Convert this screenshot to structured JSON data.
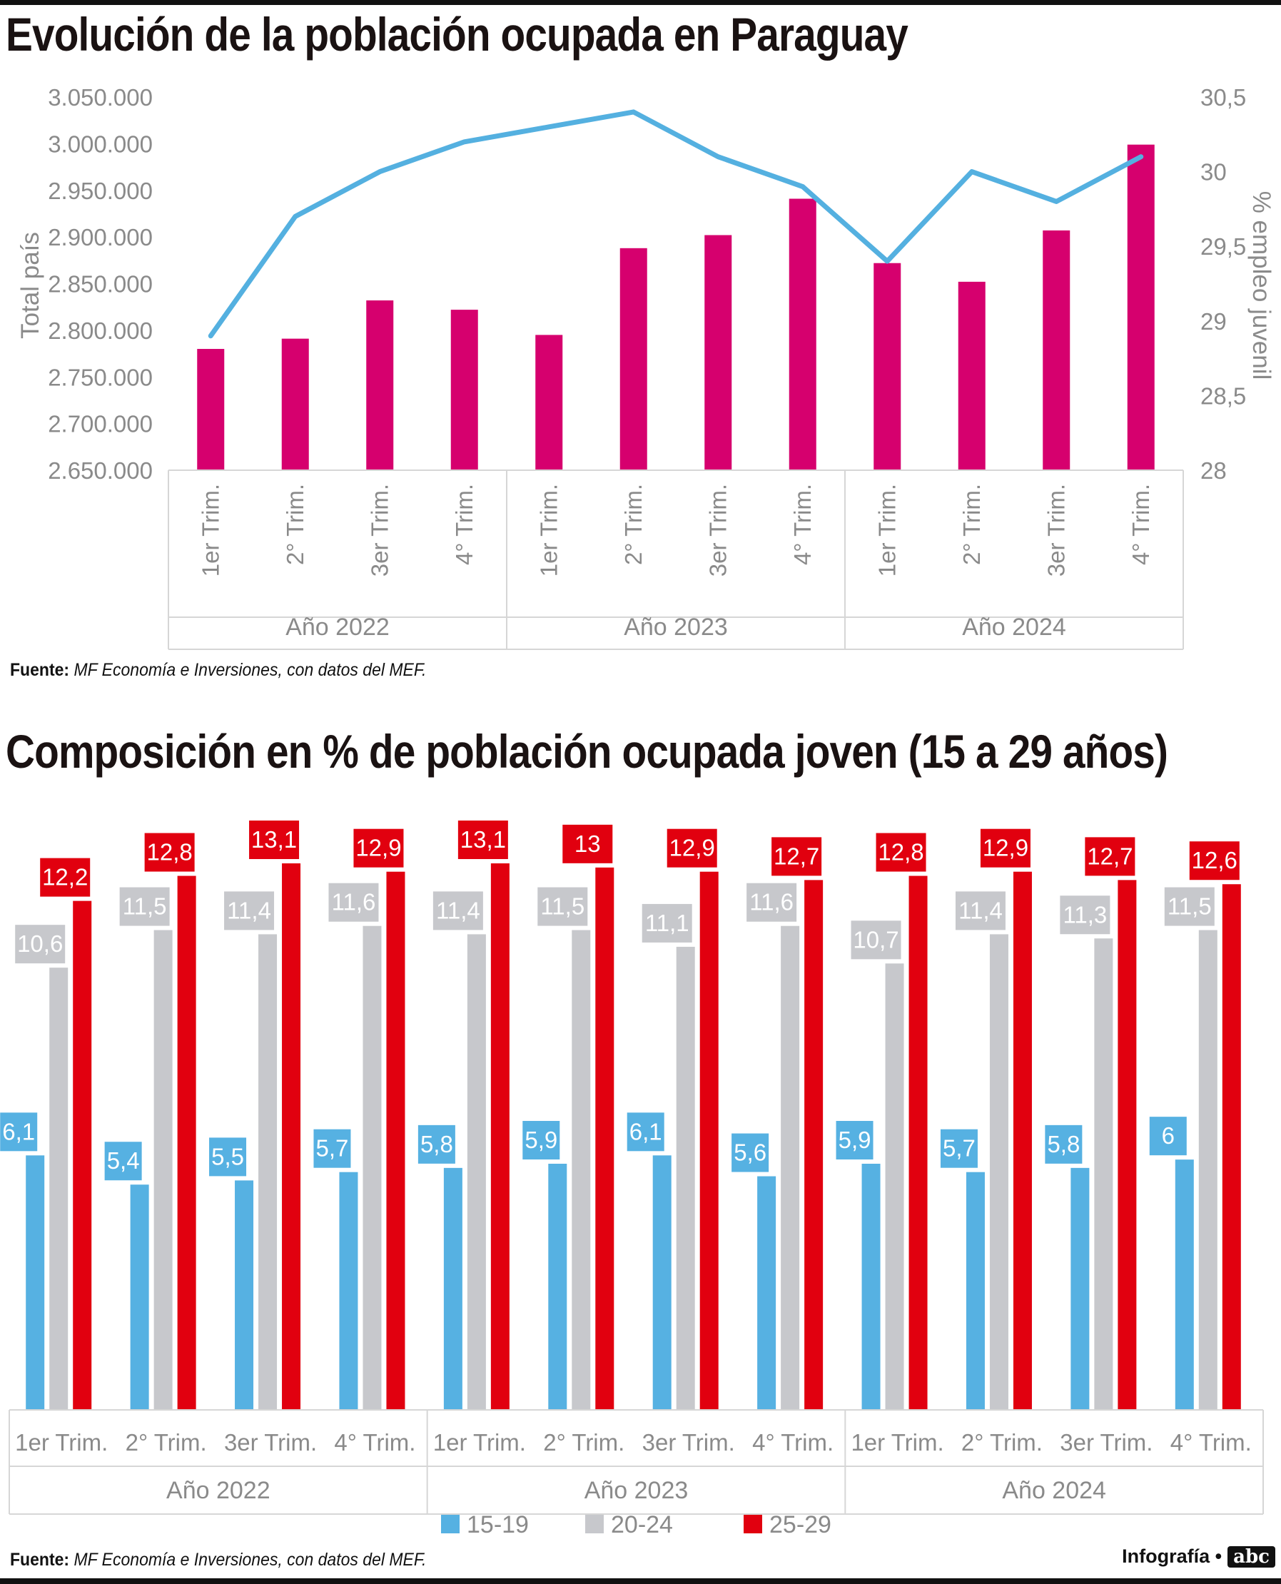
{
  "chart1": {
    "title": "Evolución de la población ocupada en Paraguay",
    "source_label": "Fuente:",
    "source_text": "MF Economía e Inversiones, con datos del MEF."
  },
  "chart2": {
    "title": "Composición en % de población ocupada joven (15 a 29 años)",
    "source_label": "Fuente:",
    "source_text": "MF Economía e Inversiones, con datos del MEF."
  },
  "credit": {
    "label": "Infografía •",
    "logo": "abc",
    "logo_sup": "COLOR"
  },
  "colors": {
    "total_bar": "#d6006e",
    "youth_line": "#54b0e0",
    "s15_19": "#56b1e2",
    "s20_24": "#c7c8cc",
    "s25_29": "#e1000f",
    "axis_text": "#8a8a8a",
    "grid": "#d6d6d6"
  },
  "chart_data": [
    {
      "type": "bar",
      "title": "Evolución de la población ocupada en Paraguay",
      "categories": [
        "1er Trim.",
        "2° Trim.",
        "3er Trim.",
        "4° Trim.",
        "1er Trim.",
        "2° Trim.",
        "3er Trim.",
        "4° Trim.",
        "1er Trim.",
        "2° Trim.",
        "3er Trim.",
        "4° Trim."
      ],
      "groups": [
        "Año 2022",
        "Año 2023",
        "Año 2024"
      ],
      "series": [
        {
          "values": [
            2780000,
            2791000,
            2832000,
            2822000,
            2795000,
            2888000,
            2902000,
            2941000,
            2872000,
            2852000,
            2907000,
            2999000
          ]
        },
        {
          "values": [
            28.9,
            29.7,
            30.0,
            30.2,
            30.3,
            30.4,
            30.1,
            29.9,
            29.4,
            30.0,
            29.8,
            30.1
          ]
        }
      ],
      "ylabel": "Total país",
      "ylabel_right": "% empleo juvenil",
      "ylim": [
        2650000,
        3050000
      ],
      "yticks": [
        "2.650.000",
        "2.700.000",
        "2.750.000",
        "2.800.000",
        "2.850.000",
        "2.900.000",
        "2.950.000",
        "3.000.000",
        "3.050.000"
      ],
      "ylim_right": [
        28,
        30.5
      ],
      "yticks_right": [
        "28",
        "28,5",
        "29",
        "29,5",
        "30",
        "30,5"
      ],
      "grid": false
    },
    {
      "type": "bar",
      "title": "Composición en % de población ocupada joven (15 a 29 años)",
      "categories": [
        "1er Trim.",
        "2° Trim.",
        "3er Trim.",
        "4° Trim.",
        "1er Trim.",
        "2° Trim.",
        "3er Trim.",
        "4° Trim.",
        "1er Trim.",
        "2° Trim.",
        "3er Trim.",
        "4° Trim."
      ],
      "groups": [
        "Año 2022",
        "Año 2023",
        "Año 2024"
      ],
      "series": [
        {
          "name": "15-19",
          "values": [
            6.1,
            5.4,
            5.5,
            5.7,
            5.8,
            5.9,
            6.1,
            5.6,
            5.9,
            5.7,
            5.8,
            6
          ]
        },
        {
          "name": "20-24",
          "values": [
            10.6,
            11.5,
            11.4,
            11.6,
            11.4,
            11.5,
            11.1,
            11.6,
            10.7,
            11.4,
            11.3,
            11.5
          ]
        },
        {
          "name": "25-29",
          "values": [
            12.2,
            12.8,
            13.1,
            12.9,
            13.1,
            13,
            12.9,
            12.7,
            12.8,
            12.9,
            12.7,
            12.6
          ]
        }
      ],
      "labels": [
        [
          "6,1",
          "5,4",
          "5,5",
          "5,7",
          "5,8",
          "5,9",
          "6,1",
          "5,6",
          "5,9",
          "5,7",
          "5,8",
          "6"
        ],
        [
          "10,6",
          "11,5",
          "11,4",
          "11,6",
          "11,4",
          "11,5",
          "11,1",
          "11,6",
          "10,7",
          "11,4",
          "11,3",
          "11,5"
        ],
        [
          "12,2",
          "12,8",
          "13,1",
          "12,9",
          "13,1",
          "13",
          "12,9",
          "12,7",
          "12,8",
          "12,9",
          "12,7",
          "12,6"
        ]
      ],
      "ylim": [
        0,
        13.1
      ],
      "legend": "bottom",
      "grid": false
    }
  ]
}
